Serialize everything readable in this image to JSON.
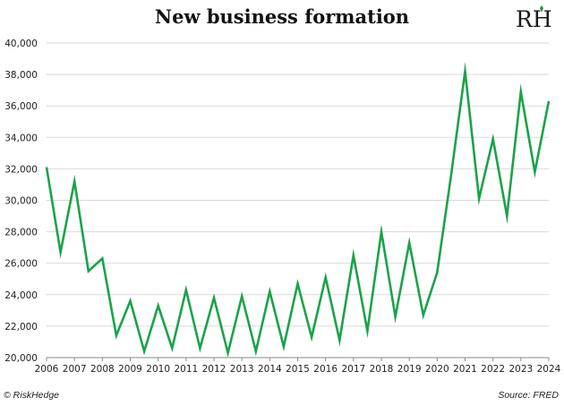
{
  "header": {
    "title": "New business formation",
    "logo_text": "RH"
  },
  "footer": {
    "left": "© RiskHedge",
    "right": "Source: FRED"
  },
  "colors": {
    "line": "#1aa34a",
    "grid": "#d9d9d9",
    "axis": "#888888",
    "logo_accent": "#2e8b3d"
  },
  "chart_data": {
    "type": "line",
    "title": "New business formation",
    "xlabel": "",
    "ylabel": "",
    "ylim": [
      20000,
      40000
    ],
    "xlim": [
      2006,
      2024
    ],
    "y_ticks": [
      20000,
      22000,
      24000,
      26000,
      28000,
      30000,
      32000,
      34000,
      36000,
      38000,
      40000
    ],
    "y_tick_labels": [
      "20,000",
      "22,000",
      "24,000",
      "26,000",
      "28,000",
      "30,000",
      "32,000",
      "34,000",
      "36,000",
      "38,000",
      "40,000"
    ],
    "x_ticks": [
      2006,
      2007,
      2008,
      2009,
      2010,
      2011,
      2012,
      2013,
      2014,
      2015,
      2016,
      2017,
      2018,
      2019,
      2020,
      2021,
      2022,
      2023,
      2024
    ],
    "x_tick_labels": [
      "2006",
      "2007",
      "2008",
      "2009",
      "2010",
      "2011",
      "2012",
      "2013",
      "2014",
      "2015",
      "2016",
      "2017",
      "2018",
      "2019",
      "2020",
      "2021",
      "2022",
      "2023",
      "2024"
    ],
    "grid": "horizontal",
    "legend": "none",
    "series": [
      {
        "x": [
          2006.0,
          2006.5,
          2007.0,
          2007.5,
          2008.0,
          2008.5,
          2009.0,
          2009.5,
          2010.0,
          2010.5,
          2011.0,
          2011.5,
          2012.0,
          2012.5,
          2013.0,
          2013.5,
          2014.0,
          2014.5,
          2015.0,
          2015.5,
          2016.0,
          2016.5,
          2017.0,
          2017.5,
          2018.0,
          2018.5,
          2019.0,
          2019.5,
          2020.0,
          2020.5,
          2021.0,
          2021.5,
          2022.0,
          2022.5,
          2023.0,
          2023.5,
          2024.0
        ],
        "y": [
          32100,
          26700,
          31200,
          25500,
          26300,
          21400,
          23600,
          20400,
          23300,
          20600,
          24300,
          20600,
          23800,
          20300,
          23900,
          20400,
          24200,
          20700,
          24700,
          21300,
          25100,
          21100,
          26500,
          21700,
          28000,
          22600,
          27300,
          22700,
          25400,
          31600,
          38200,
          30100,
          33900,
          29000,
          36900,
          31800,
          36300
        ]
      }
    ]
  }
}
